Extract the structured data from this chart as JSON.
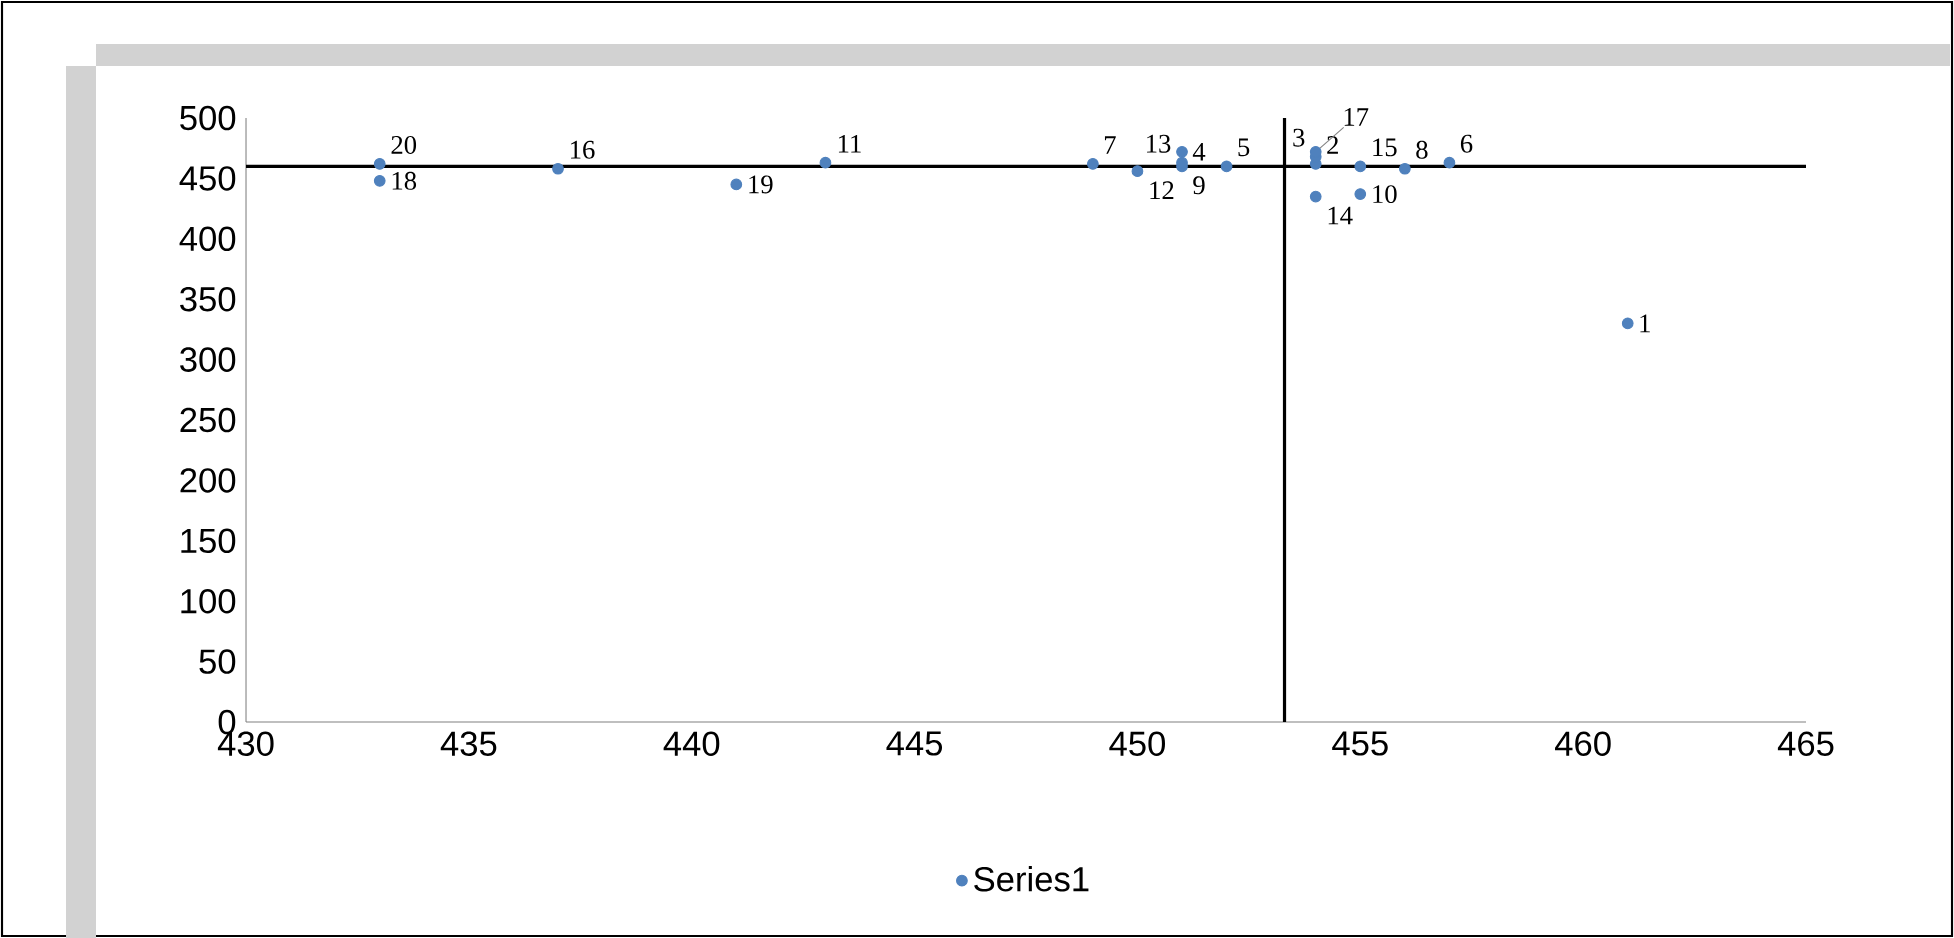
{
  "chart_data": {
    "type": "scatter",
    "legend": "bottom",
    "grid": false,
    "series": [
      {
        "name": "Series1",
        "color": "#4f81bd",
        "x": [
          461,
          454,
          454,
          451,
          452,
          457,
          449,
          456,
          451,
          455,
          443,
          450,
          451,
          454,
          455,
          437,
          454,
          433,
          441,
          433
        ],
        "values": [
          330,
          462,
          468,
          472,
          460,
          463,
          462,
          458,
          460,
          437,
          463,
          456,
          463,
          435,
          460,
          458,
          472,
          448,
          445,
          462
        ]
      }
    ],
    "annotations": [
      {
        "text": "1",
        "x": 461,
        "y": 330
      },
      {
        "text": "2",
        "x": 454,
        "y": 462
      },
      {
        "text": "3",
        "x": 454,
        "y": 468
      },
      {
        "text": "4",
        "x": 451,
        "y": 472
      },
      {
        "text": "5",
        "x": 452,
        "y": 460
      },
      {
        "text": "6",
        "x": 457,
        "y": 463
      },
      {
        "text": "7",
        "x": 449,
        "y": 462
      },
      {
        "text": "8",
        "x": 456,
        "y": 458
      },
      {
        "text": "9",
        "x": 451,
        "y": 460
      },
      {
        "text": "10",
        "x": 455,
        "y": 437
      },
      {
        "text": "11",
        "x": 443,
        "y": 463
      },
      {
        "text": "12",
        "x": 450,
        "y": 456
      },
      {
        "text": "13",
        "x": 451,
        "y": 463
      },
      {
        "text": "14",
        "x": 454,
        "y": 435
      },
      {
        "text": "15",
        "x": 455,
        "y": 460
      },
      {
        "text": "16",
        "x": 437,
        "y": 458
      },
      {
        "text": "17",
        "x": 454,
        "y": 472
      },
      {
        "text": "18",
        "x": 433,
        "y": 448
      },
      {
        "text": "19",
        "x": 441,
        "y": 445
      },
      {
        "text": "20",
        "x": 433,
        "y": 462
      }
    ],
    "ref_lines": [
      {
        "axis": "y",
        "value": 460,
        "color": "#000000"
      },
      {
        "axis": "x",
        "value": 453.3,
        "color": "#000000"
      }
    ],
    "xlim": [
      430,
      465
    ],
    "xticks": [
      430,
      435,
      440,
      445,
      450,
      455,
      460,
      465
    ],
    "ylim": [
      0,
      500
    ],
    "yticks": [
      0,
      50,
      100,
      150,
      200,
      250,
      300,
      350,
      400,
      450,
      500
    ]
  }
}
